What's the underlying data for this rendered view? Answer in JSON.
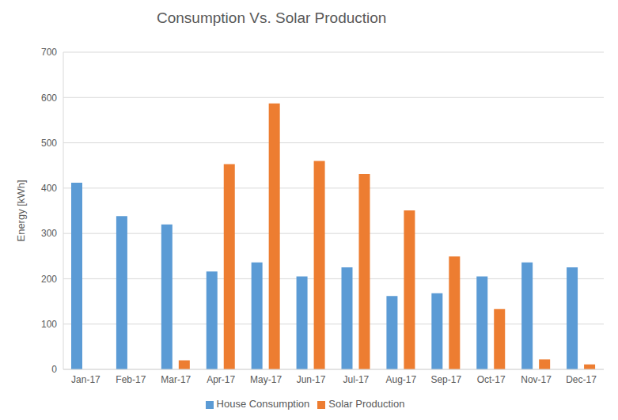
{
  "chart_data": {
    "type": "bar",
    "title": "Consumption Vs. Solar Production",
    "y_label": "Energy [kWh]",
    "categories": [
      "Jan-17",
      "Feb-17",
      "Mar-17",
      "Apr-17",
      "May-17",
      "Jun-17",
      "Jul-17",
      "Aug-17",
      "Sep-17",
      "Oct-17",
      "Nov-17",
      "Dec-17"
    ],
    "series": [
      {
        "name": "House Consumption",
        "color": "#5b9bd5",
        "values": [
          412,
          338,
          320,
          216,
          236,
          205,
          225,
          162,
          168,
          205,
          236,
          225
        ]
      },
      {
        "name": "Solar Production",
        "color": "#ed7d31",
        "values": [
          0,
          0,
          20,
          453,
          587,
          460,
          431,
          351,
          249,
          133,
          22,
          11
        ]
      }
    ],
    "ylim": [
      0,
      700
    ],
    "yticks": [
      0,
      100,
      200,
      300,
      400,
      500,
      600,
      700
    ],
    "grid": true,
    "legend": "bottom"
  }
}
